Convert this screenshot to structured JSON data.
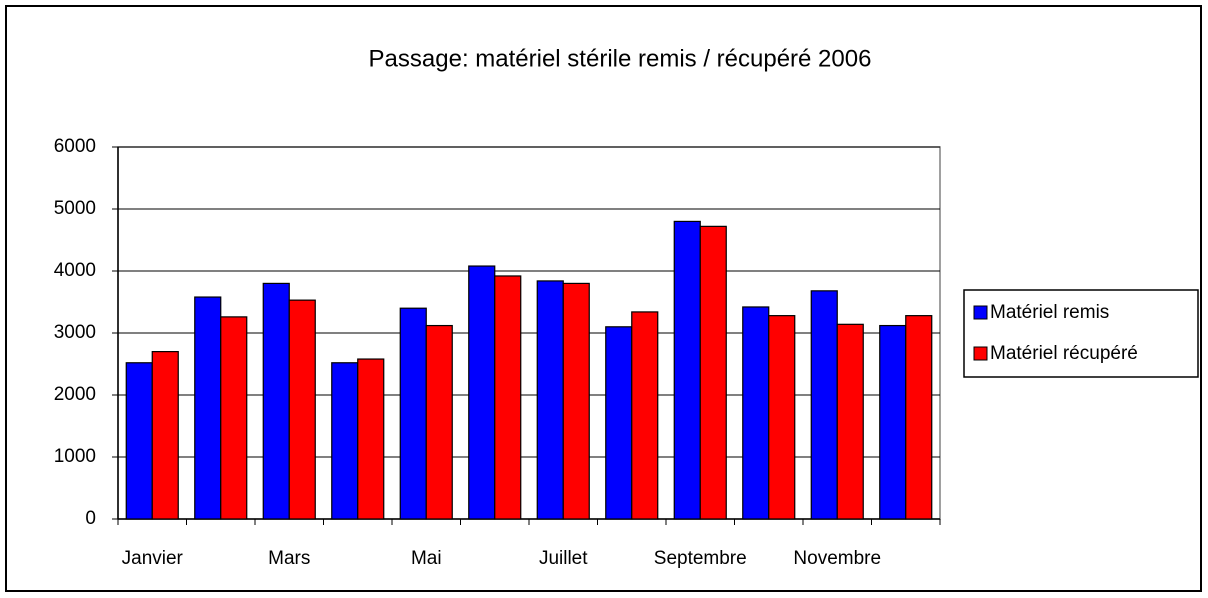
{
  "chart_data": {
    "type": "bar",
    "title": "Passage: matériel stérile remis / récupéré 2006",
    "categories": [
      "Janvier",
      null,
      "Mars",
      null,
      "Mai",
      null,
      "Juillet",
      null,
      "Septembre",
      null,
      "Novembre",
      null
    ],
    "series": [
      {
        "name": "Matériel remis",
        "color": "#0000ff",
        "values": [
          2520,
          3580,
          3800,
          2520,
          3400,
          4080,
          3840,
          3100,
          4800,
          3420,
          3680,
          3120
        ]
      },
      {
        "name": "Matériel récupéré",
        "color": "#ff0000",
        "values": [
          2700,
          3260,
          3530,
          2580,
          3120,
          3920,
          3800,
          3340,
          4720,
          3280,
          3140,
          3280
        ]
      }
    ],
    "ylim": [
      0,
      6000
    ],
    "yticks": [
      0,
      1000,
      2000,
      3000,
      4000,
      5000,
      6000
    ],
    "grid": true,
    "legend": "right"
  }
}
